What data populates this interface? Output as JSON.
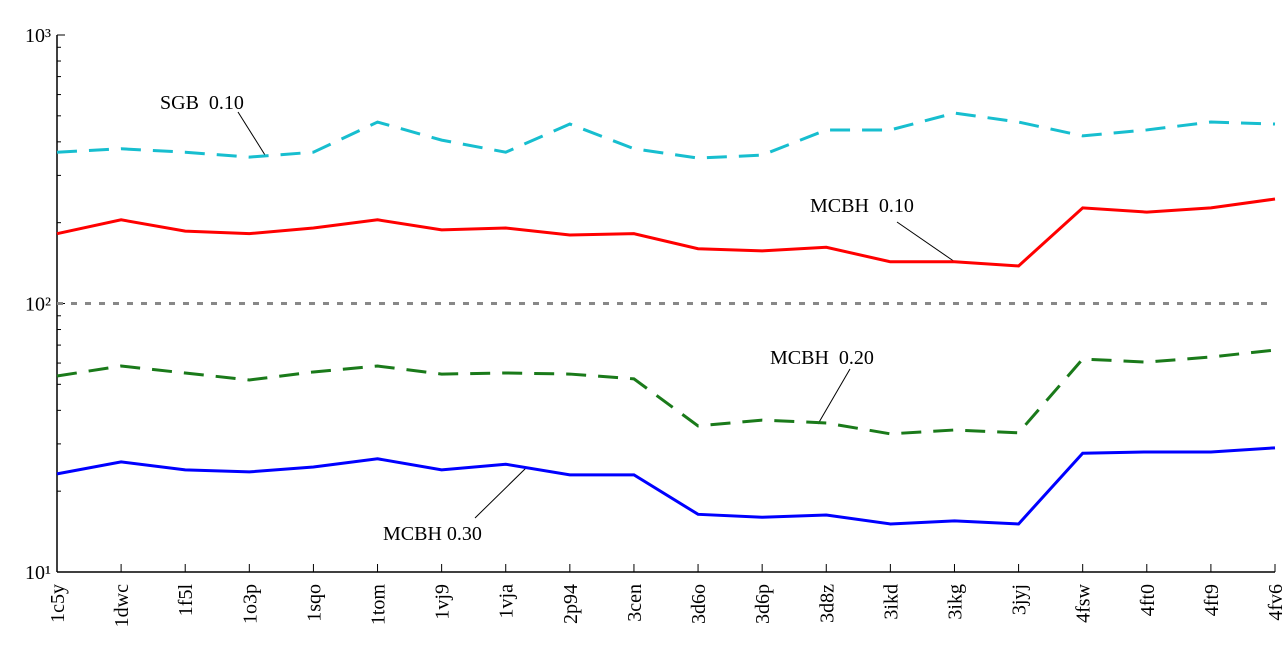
{
  "chart_data": {
    "type": "line",
    "categories": [
      "1c5y",
      "1dwc",
      "1f5l",
      "1o3p",
      "1sqo",
      "1tom",
      "1vj9",
      "1vja",
      "2p94",
      "3cen",
      "3d6o",
      "3d6p",
      "3d8z",
      "3ikd",
      "3ikg",
      "3jyj",
      "4fsw",
      "4ft0",
      "4ft9",
      "4fv6"
    ],
    "series": [
      {
        "name": "SGB  0.10",
        "color": "#17becf",
        "dash": "dashed",
        "values": [
          366,
          377,
          366,
          351,
          366,
          474,
          406,
          366,
          466,
          377,
          348,
          357,
          443,
          443,
          512,
          474,
          421,
          443,
          474,
          466
        ]
      },
      {
        "name": "MCBH  0.10",
        "color": "#ff0000",
        "dash": "solid",
        "values": [
          182,
          205,
          186,
          182,
          191,
          205,
          188,
          191,
          180,
          182,
          160,
          157,
          162,
          143,
          143,
          138,
          227,
          219,
          227,
          245
        ]
      },
      {
        "name": "MCBH  0.20",
        "color": "#1a7a1a",
        "dash": "dashed",
        "values": [
          53.7,
          58.5,
          55.1,
          51.9,
          55.6,
          58.5,
          54.6,
          55.1,
          54.6,
          52.4,
          35.0,
          36.8,
          35.9,
          32.7,
          33.8,
          33.0,
          62.1,
          60.5,
          63.2,
          67.1
        ]
      },
      {
        "name": "MCBH 0.30",
        "color": "#0000ff",
        "dash": "solid",
        "values": [
          23.2,
          25.7,
          24.0,
          23.6,
          24.6,
          26.4,
          24.0,
          25.2,
          23.0,
          23.0,
          16.4,
          16.0,
          16.3,
          15.1,
          15.5,
          15.1,
          27.7,
          28.0,
          28.0,
          29.0
        ]
      }
    ],
    "log_y": true,
    "ylim": [
      10,
      1000
    ],
    "yticks": [
      {
        "value": 10,
        "label": "10¹"
      },
      {
        "value": 100,
        "label": "10²"
      },
      {
        "value": 1000,
        "label": "10³"
      }
    ],
    "hline": 100,
    "hline_color": "#888888"
  }
}
